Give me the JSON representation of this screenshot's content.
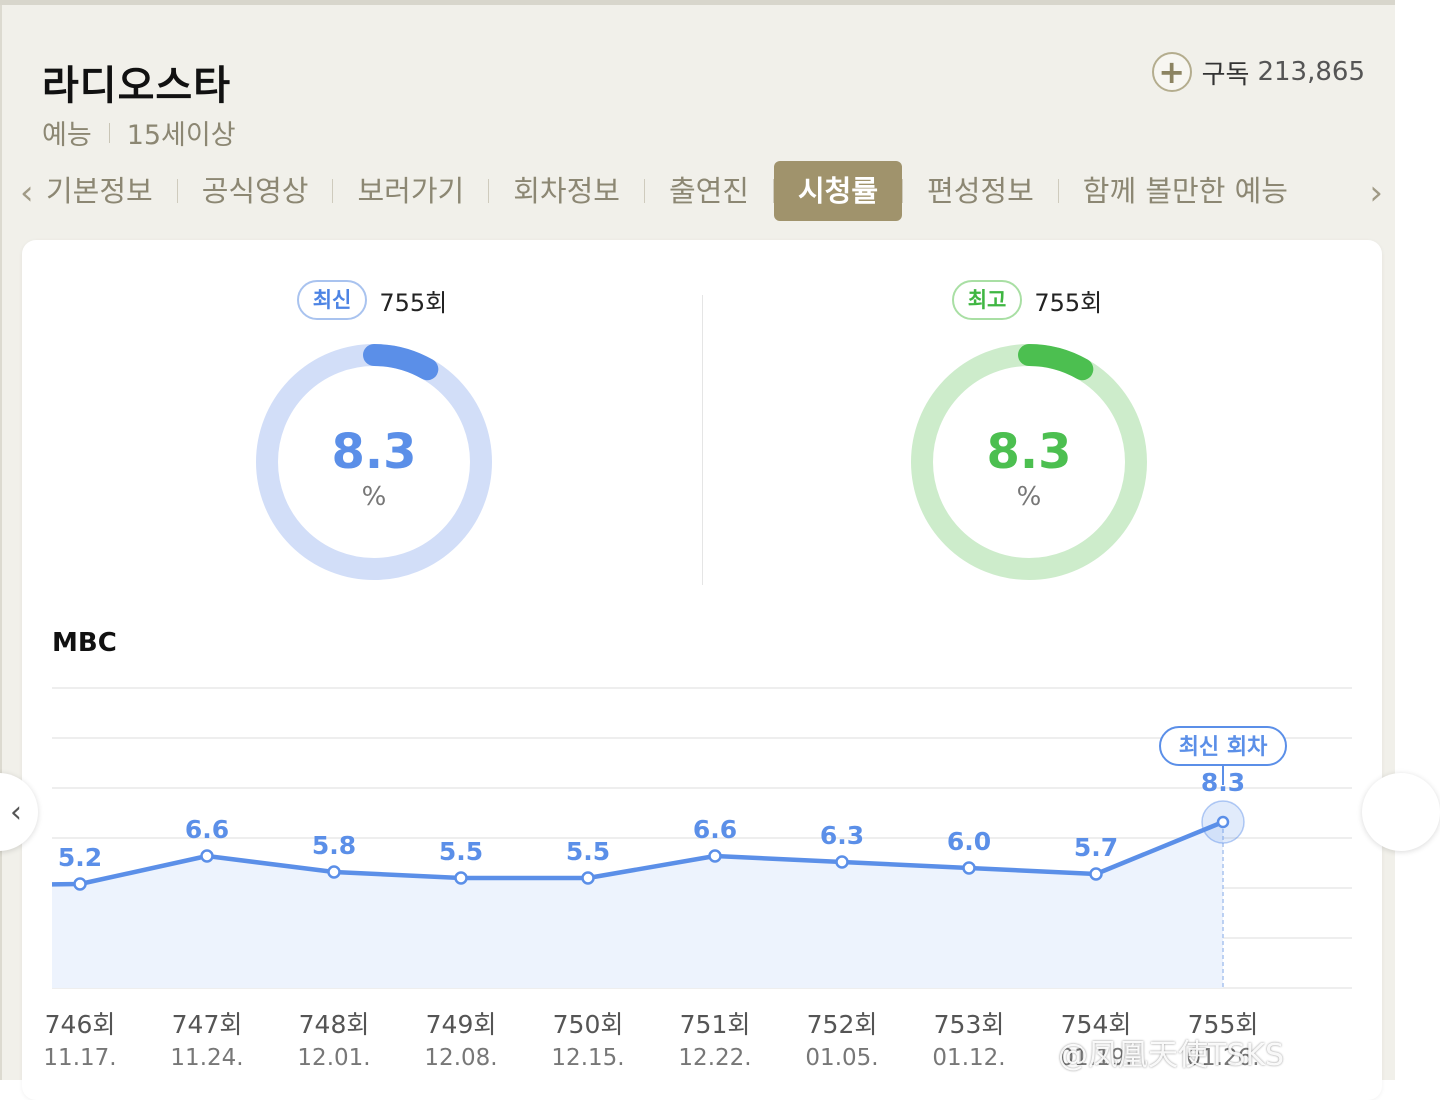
{
  "program": {
    "title": "라디오스타",
    "genre": "예능",
    "age_rating": "15세이상",
    "subscribe_label": "구독",
    "subscribe_count": "213,865"
  },
  "tabs": [
    {
      "label": "기본정보",
      "active": false
    },
    {
      "label": "공식영상",
      "active": false
    },
    {
      "label": "보러가기",
      "active": false
    },
    {
      "label": "회차정보",
      "active": false
    },
    {
      "label": "출연진",
      "active": false
    },
    {
      "label": "시청률",
      "active": true
    },
    {
      "label": "편성정보",
      "active": false
    },
    {
      "label": "함께 볼만한 예능",
      "active": false
    }
  ],
  "ratings": {
    "latest": {
      "badge": "최신",
      "episode": "755회",
      "value": "8.3",
      "unit": "%",
      "color": "#5b8fe8",
      "track_color": "#d2def8"
    },
    "best": {
      "badge": "최고",
      "episode": "755회",
      "value": "8.3",
      "unit": "%",
      "color": "#4cbf50",
      "track_color": "#cdeccb"
    }
  },
  "channel": "MBC",
  "chart_data": {
    "type": "area",
    "x": [
      "746회",
      "747회",
      "748회",
      "749회",
      "750회",
      "751회",
      "752회",
      "753회",
      "754회",
      "755회"
    ],
    "dates": [
      "11.17.",
      "11.24.",
      "12.01.",
      "12.08.",
      "12.15.",
      "12.22.",
      "01.05.",
      "01.12.",
      "01.19.",
      "01.26."
    ],
    "series": [
      {
        "values": [
          5.2,
          6.6,
          5.8,
          5.5,
          5.5,
          6.6,
          6.3,
          6.0,
          5.7,
          8.3
        ]
      }
    ],
    "value_labels": [
      "5.2",
      "6.6",
      "5.8",
      "5.5",
      "5.5",
      "6.6",
      "6.3",
      "6.0",
      "5.7",
      "8.3"
    ],
    "highlight_label": "최신 회차",
    "grid": true,
    "line_color": "#5b8fe8",
    "fill_color": "#edf3fd"
  },
  "watermark": "@凤凰天使TSKS"
}
